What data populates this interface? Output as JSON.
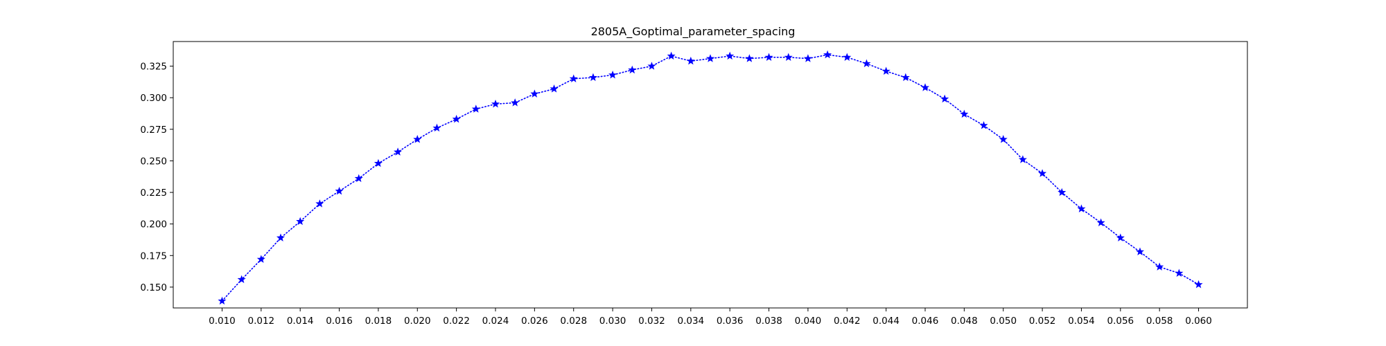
{
  "chart_data": {
    "type": "line",
    "title": "2805A_Goptimal_parameter_spacing",
    "xlabel": "",
    "ylabel": "",
    "xlim": [
      0.0075,
      0.0625
    ],
    "ylim": [
      0.1335,
      0.3445
    ],
    "grid": false,
    "line_style": "dotted",
    "marker": "star",
    "color": "#0000ff",
    "x_ticks": [
      "0.010",
      "0.012",
      "0.014",
      "0.016",
      "0.018",
      "0.020",
      "0.022",
      "0.024",
      "0.026",
      "0.028",
      "0.030",
      "0.032",
      "0.034",
      "0.036",
      "0.038",
      "0.040",
      "0.042",
      "0.044",
      "0.046",
      "0.048",
      "0.050",
      "0.052",
      "0.054",
      "0.056",
      "0.058",
      "0.060"
    ],
    "y_ticks": [
      "0.150",
      "0.175",
      "0.200",
      "0.225",
      "0.250",
      "0.275",
      "0.300",
      "0.325"
    ],
    "series": [
      {
        "x": [
          0.01,
          0.011,
          0.012,
          0.013,
          0.014,
          0.015,
          0.016,
          0.017,
          0.018,
          0.019,
          0.02,
          0.021,
          0.022,
          0.023,
          0.024,
          0.025,
          0.026,
          0.027,
          0.028,
          0.029,
          0.03,
          0.031,
          0.032,
          0.033,
          0.034,
          0.035,
          0.036,
          0.037,
          0.038,
          0.039,
          0.04,
          0.041,
          0.042,
          0.043,
          0.044,
          0.045,
          0.046,
          0.047,
          0.048,
          0.049,
          0.05,
          0.051,
          0.052,
          0.053,
          0.054,
          0.055,
          0.056,
          0.057,
          0.058,
          0.059,
          0.06
        ],
        "values": [
          0.139,
          0.156,
          0.172,
          0.189,
          0.202,
          0.216,
          0.226,
          0.236,
          0.248,
          0.257,
          0.267,
          0.276,
          0.283,
          0.291,
          0.295,
          0.296,
          0.303,
          0.307,
          0.315,
          0.316,
          0.318,
          0.322,
          0.325,
          0.333,
          0.329,
          0.331,
          0.333,
          0.331,
          0.332,
          0.332,
          0.331,
          0.334,
          0.332,
          0.327,
          0.321,
          0.316,
          0.308,
          0.299,
          0.287,
          0.278,
          0.267,
          0.251,
          0.24,
          0.225,
          0.212,
          0.201,
          0.189,
          0.178,
          0.166,
          0.161,
          0.152
        ]
      }
    ]
  }
}
